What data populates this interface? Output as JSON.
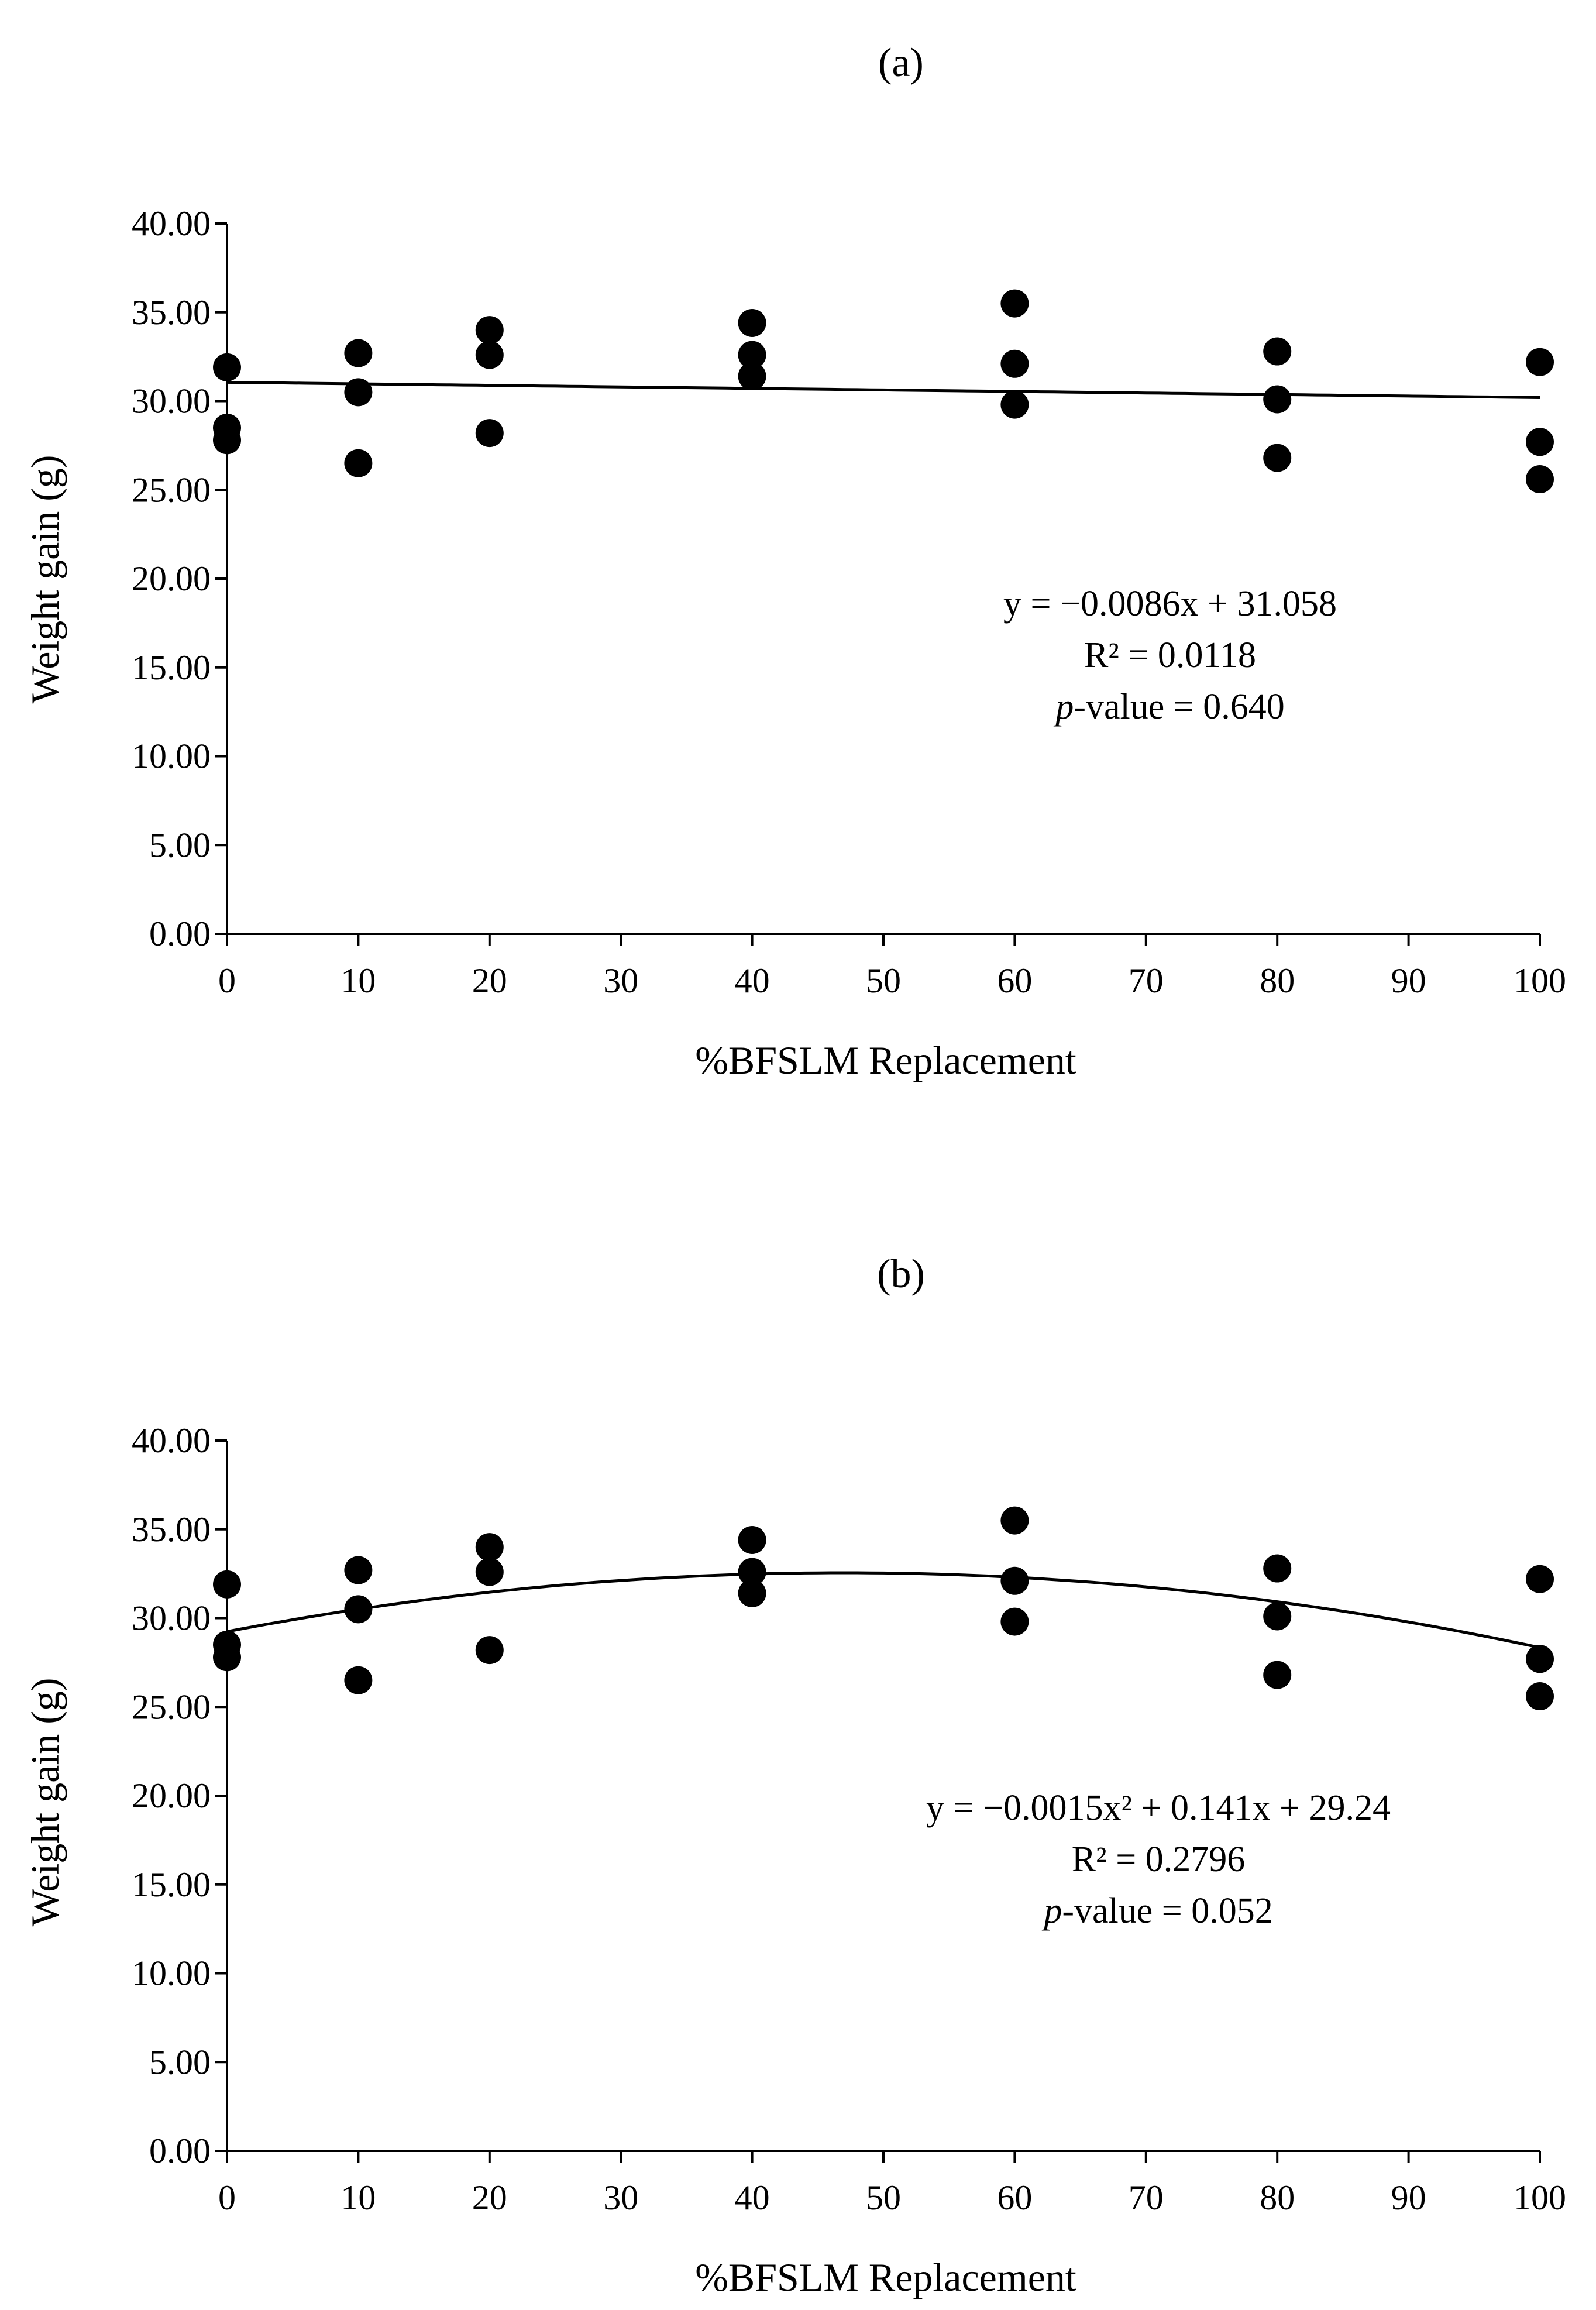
{
  "chart_data": [
    {
      "panel": "(a)",
      "type": "scatter",
      "xlabel": "%BFSLM Replacement",
      "ylabel": "Weight gain (g)",
      "xlim": [
        0,
        100
      ],
      "ylim": [
        0,
        40
      ],
      "xticks": [
        0,
        10,
        20,
        30,
        40,
        50,
        60,
        70,
        80,
        90,
        100
      ],
      "xtick_labels": [
        "0",
        "10",
        "20",
        "30",
        "40",
        "50",
        "60",
        "70",
        "80",
        "90",
        "100"
      ],
      "yticks": [
        0,
        5,
        10,
        15,
        20,
        25,
        30,
        35,
        40
      ],
      "ytick_labels": [
        "0.00",
        "5.00",
        "10.00",
        "15.00",
        "20.00",
        "25.00",
        "30.00",
        "35.00",
        "40.00"
      ],
      "points": [
        {
          "x": 0,
          "y": 31.9
        },
        {
          "x": 0,
          "y": 28.5
        },
        {
          "x": 0,
          "y": 27.8
        },
        {
          "x": 10,
          "y": 32.7
        },
        {
          "x": 10,
          "y": 30.5
        },
        {
          "x": 10,
          "y": 26.5
        },
        {
          "x": 20,
          "y": 34.0
        },
        {
          "x": 20,
          "y": 32.6
        },
        {
          "x": 20,
          "y": 28.2
        },
        {
          "x": 40,
          "y": 34.4
        },
        {
          "x": 40,
          "y": 32.6
        },
        {
          "x": 40,
          "y": 31.4
        },
        {
          "x": 60,
          "y": 35.5
        },
        {
          "x": 60,
          "y": 32.1
        },
        {
          "x": 60,
          "y": 29.8
        },
        {
          "x": 80,
          "y": 32.8
        },
        {
          "x": 80,
          "y": 30.1
        },
        {
          "x": 80,
          "y": 26.8
        },
        {
          "x": 100,
          "y": 32.2
        },
        {
          "x": 100,
          "y": 27.7
        },
        {
          "x": 100,
          "y": 25.6
        }
      ],
      "trendline": {
        "kind": "linear",
        "coefficients": [
          -0.0086,
          31.058
        ]
      },
      "annotation": {
        "equation": "y = −0.0086x + 31.058",
        "r2": "R² = 0.0118",
        "p_italic": "p",
        "p_rest": "-value = 0.640"
      }
    },
    {
      "panel": "(b)",
      "type": "scatter",
      "xlabel": "%BFSLM Replacement",
      "ylabel": "Weight gain (g)",
      "xlim": [
        0,
        100
      ],
      "ylim": [
        0,
        40
      ],
      "xticks": [
        0,
        10,
        20,
        30,
        40,
        50,
        60,
        70,
        80,
        90,
        100
      ],
      "xtick_labels": [
        "0",
        "10",
        "20",
        "30",
        "40",
        "50",
        "60",
        "70",
        "80",
        "90",
        "100"
      ],
      "yticks": [
        0,
        5,
        10,
        15,
        20,
        25,
        30,
        35,
        40
      ],
      "ytick_labels": [
        "0.00",
        "5.00",
        "10.00",
        "15.00",
        "20.00",
        "25.00",
        "30.00",
        "35.00",
        "40.00"
      ],
      "points": [
        {
          "x": 0,
          "y": 31.9
        },
        {
          "x": 0,
          "y": 28.5
        },
        {
          "x": 0,
          "y": 27.8
        },
        {
          "x": 10,
          "y": 32.7
        },
        {
          "x": 10,
          "y": 30.5
        },
        {
          "x": 10,
          "y": 26.5
        },
        {
          "x": 20,
          "y": 34.0
        },
        {
          "x": 20,
          "y": 32.6
        },
        {
          "x": 20,
          "y": 28.2
        },
        {
          "x": 40,
          "y": 34.4
        },
        {
          "x": 40,
          "y": 32.6
        },
        {
          "x": 40,
          "y": 31.4
        },
        {
          "x": 60,
          "y": 35.5
        },
        {
          "x": 60,
          "y": 32.1
        },
        {
          "x": 60,
          "y": 29.8
        },
        {
          "x": 80,
          "y": 32.8
        },
        {
          "x": 80,
          "y": 30.1
        },
        {
          "x": 80,
          "y": 26.8
        },
        {
          "x": 100,
          "y": 32.2
        },
        {
          "x": 100,
          "y": 27.7
        },
        {
          "x": 100,
          "y": 25.6
        }
      ],
      "trendline": {
        "kind": "quadratic",
        "coefficients": [
          -0.0015,
          0.141,
          29.24
        ]
      },
      "annotation": {
        "equation": "y = −0.0015x² + 0.141x + 29.24",
        "r2": "R² = 0.2796",
        "p_italic": "p",
        "p_rest": "-value = 0.052"
      }
    }
  ]
}
